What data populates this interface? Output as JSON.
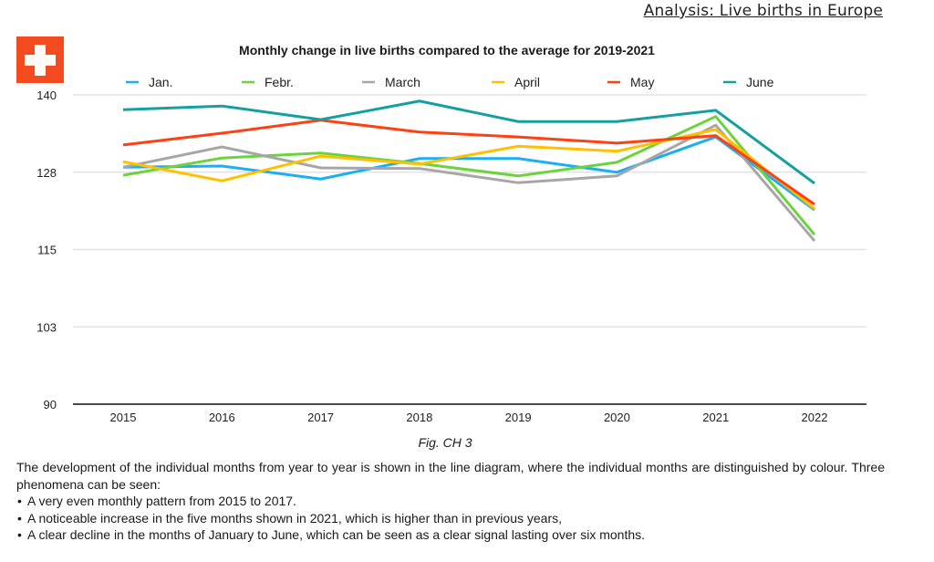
{
  "header": {
    "title": "Analysis: Live births in Europe"
  },
  "flag": {
    "icon": "swiss-flag-icon",
    "colors": {
      "background": "#f44a1f",
      "cross": "#fffaf5"
    }
  },
  "figure_caption": "Fig. CH 3",
  "description": {
    "intro": "The development of the individual months from year to year is shown in the line diagram, where the individual months are distinguished by colour. Three phenomena can be seen:",
    "bullets": [
      "A very even monthly pattern from 2015 to 2017.",
      "A noticeable increase in the five months shown in 2021, which is higher than in previous years,",
      "A clear decline in the months of January to June, which can be seen as a clear signal lasting over six months."
    ]
  },
  "chart_data": {
    "type": "line",
    "title": "Monthly change in live births compared to the average for 2019-2021",
    "xlabel": "",
    "ylabel": "",
    "x": [
      "2015",
      "2016",
      "2017",
      "2018",
      "2019",
      "2020",
      "2021",
      "2022"
    ],
    "ylim": [
      90,
      140
    ],
    "yticks": [
      140,
      128,
      115,
      103,
      90
    ],
    "grid": true,
    "legend": "top",
    "series": [
      {
        "name": "Jan.",
        "color": "#1aaef5",
        "values": [
          128.3,
          128.5,
          126.4,
          129.7,
          129.7,
          127.5,
          133.2,
          121.4
        ]
      },
      {
        "name": "Febr.",
        "color": "#6cd33f",
        "values": [
          127.0,
          129.8,
          130.6,
          128.9,
          126.9,
          129.1,
          136.5,
          117.4
        ]
      },
      {
        "name": "March",
        "color": "#a6a6a6",
        "values": [
          128.3,
          131.6,
          128.2,
          128.1,
          125.8,
          126.9,
          135.1,
          116.4
        ]
      },
      {
        "name": "April",
        "color": "#ffc000",
        "values": [
          129.2,
          126.1,
          130.1,
          128.8,
          131.7,
          130.9,
          134.4,
          121.6
        ]
      },
      {
        "name": "May",
        "color": "#ff4013",
        "values": [
          131.9,
          133.8,
          135.9,
          134.0,
          133.2,
          132.2,
          133.4,
          122.3
        ]
      },
      {
        "name": "June",
        "color": "#14a0a0",
        "values": [
          137.6,
          138.2,
          136.0,
          139.0,
          135.7,
          135.7,
          137.5,
          125.7
        ]
      }
    ]
  }
}
